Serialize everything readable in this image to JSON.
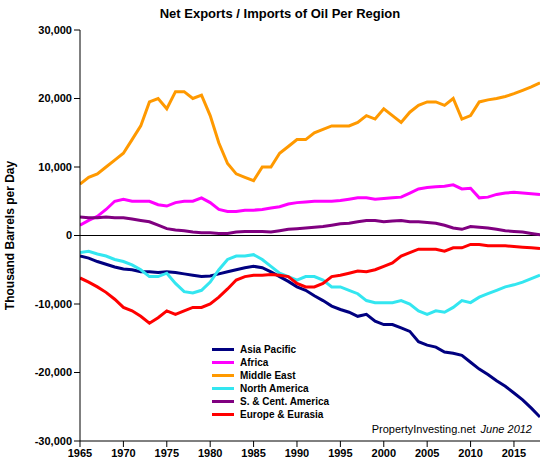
{
  "chart_data": {
    "type": "line",
    "title": "Net Exports / Imports of Oil Per Region",
    "y_label": "Thousand Barrels per Day",
    "annotations": [
      "PropertyInvesting.net",
      "June 2012"
    ],
    "x": [
      1965,
      1966,
      1967,
      1968,
      1969,
      1970,
      1971,
      1972,
      1973,
      1974,
      1975,
      1976,
      1977,
      1978,
      1979,
      1980,
      1981,
      1982,
      1983,
      1984,
      1985,
      1986,
      1987,
      1988,
      1989,
      1990,
      1991,
      1992,
      1993,
      1994,
      1995,
      1996,
      1997,
      1998,
      1999,
      2000,
      2001,
      2002,
      2003,
      2004,
      2005,
      2006,
      2007,
      2008,
      2009,
      2010,
      2011,
      2012,
      2013,
      2014,
      2015,
      2016,
      2017,
      2018
    ],
    "xlim": [
      1965,
      2018
    ],
    "xticks": [
      1965,
      1970,
      1975,
      1980,
      1985,
      1990,
      1995,
      2000,
      2005,
      2010,
      2015
    ],
    "ylim": [
      -30000,
      30000
    ],
    "yticks": [
      {
        "value": -30000,
        "label": "-30,000"
      },
      {
        "value": -20000,
        "label": "-20,000"
      },
      {
        "value": -10000,
        "label": "-10,000"
      },
      0,
      {
        "value": 10000,
        "label": "10,000"
      },
      {
        "value": 20000,
        "label": "20,000"
      },
      {
        "value": 30000,
        "label": "30,000"
      }
    ],
    "grid": false,
    "legend": "lower left",
    "series": [
      {
        "name": "Asia Pacific",
        "color": "#000080",
        "values": [
          -3000,
          -3300,
          -3800,
          -4200,
          -4600,
          -4900,
          -5000,
          -5300,
          -5300,
          -5400,
          -5300,
          -5400,
          -5600,
          -5800,
          -6000,
          -5900,
          -5600,
          -5300,
          -5000,
          -4700,
          -4500,
          -4700,
          -5300,
          -6000,
          -6700,
          -7500,
          -8000,
          -8800,
          -9500,
          -10300,
          -10800,
          -11200,
          -11800,
          -11500,
          -12500,
          -13000,
          -13000,
          -13500,
          -14000,
          -15500,
          -16000,
          -16300,
          -17000,
          -17200,
          -17500,
          -18500,
          -19500,
          -20300,
          -21200,
          -22000,
          -23000,
          -24000,
          -25200,
          -26500
        ]
      },
      {
        "name": "Africa",
        "color": "#ff00ff",
        "values": [
          1500,
          2200,
          2800,
          3800,
          5000,
          5300,
          5000,
          5000,
          5000,
          4500,
          4300,
          4800,
          5000,
          5000,
          5500,
          4800,
          3800,
          3500,
          3500,
          3700,
          3700,
          3800,
          4000,
          4200,
          4600,
          4800,
          4900,
          5000,
          5000,
          5000,
          5100,
          5300,
          5500,
          5500,
          5300,
          5400,
          5500,
          5600,
          6200,
          6800,
          7000,
          7100,
          7200,
          7400,
          6800,
          6900,
          5500,
          5600,
          6000,
          6200,
          6300,
          6200,
          6100,
          6000
        ]
      },
      {
        "name": "Middle East",
        "color": "#ff9900",
        "values": [
          7500,
          8500,
          9000,
          10000,
          11000,
          12000,
          14000,
          16000,
          19500,
          20000,
          18500,
          21000,
          21000,
          20000,
          20500,
          17500,
          13500,
          10500,
          9000,
          8500,
          8000,
          10000,
          10000,
          12000,
          13000,
          14000,
          14000,
          15000,
          15500,
          16000,
          16000,
          16000,
          16500,
          17500,
          17000,
          18500,
          17500,
          16500,
          18000,
          19000,
          19500,
          19500,
          19000,
          20000,
          17000,
          17500,
          19500,
          19800,
          20000,
          20300,
          20700,
          21200,
          21700,
          22300
        ]
      },
      {
        "name": "North America",
        "color": "#33e6f0",
        "values": [
          -2500,
          -2300,
          -2700,
          -3000,
          -3500,
          -3800,
          -4300,
          -5000,
          -6000,
          -6000,
          -5500,
          -7000,
          -8200,
          -8400,
          -8000,
          -6800,
          -5000,
          -3500,
          -3000,
          -3000,
          -2800,
          -3500,
          -4500,
          -5500,
          -6000,
          -6500,
          -6000,
          -6000,
          -6500,
          -7500,
          -7500,
          -8000,
          -8500,
          -9500,
          -9800,
          -9800,
          -9800,
          -9500,
          -10000,
          -11000,
          -11500,
          -11000,
          -11200,
          -10500,
          -9500,
          -9800,
          -9000,
          -8500,
          -8000,
          -7500,
          -7200,
          -6800,
          -6300,
          -5800
        ]
      },
      {
        "name": "S. & Cent. America",
        "color": "#800080",
        "values": [
          2700,
          2600,
          2600,
          2700,
          2600,
          2600,
          2400,
          2200,
          2000,
          1500,
          1000,
          800,
          700,
          500,
          400,
          400,
          300,
          300,
          500,
          600,
          600,
          600,
          500,
          700,
          900,
          1000,
          1100,
          1200,
          1300,
          1500,
          1700,
          1800,
          2000,
          2200,
          2200,
          2000,
          2100,
          2200,
          2000,
          2000,
          1900,
          1800,
          1500,
          1100,
          900,
          1300,
          1200,
          1100,
          900,
          700,
          600,
          500,
          300,
          100
        ]
      },
      {
        "name": "Europe & Eurasia",
        "color": "#ff0000",
        "values": [
          -6200,
          -6800,
          -7500,
          -8300,
          -9300,
          -10500,
          -11000,
          -11800,
          -12800,
          -12000,
          -11000,
          -11500,
          -11000,
          -10500,
          -10500,
          -10000,
          -9000,
          -7800,
          -6500,
          -6000,
          -5800,
          -5800,
          -5700,
          -5800,
          -6000,
          -7000,
          -7500,
          -7500,
          -7000,
          -6000,
          -5800,
          -5500,
          -5200,
          -5300,
          -5000,
          -4500,
          -4000,
          -3000,
          -2500,
          -2000,
          -2000,
          -2000,
          -2300,
          -1800,
          -1800,
          -1300,
          -1300,
          -1500,
          -1500,
          -1500,
          -1600,
          -1700,
          -1800,
          -1900
        ]
      }
    ]
  }
}
